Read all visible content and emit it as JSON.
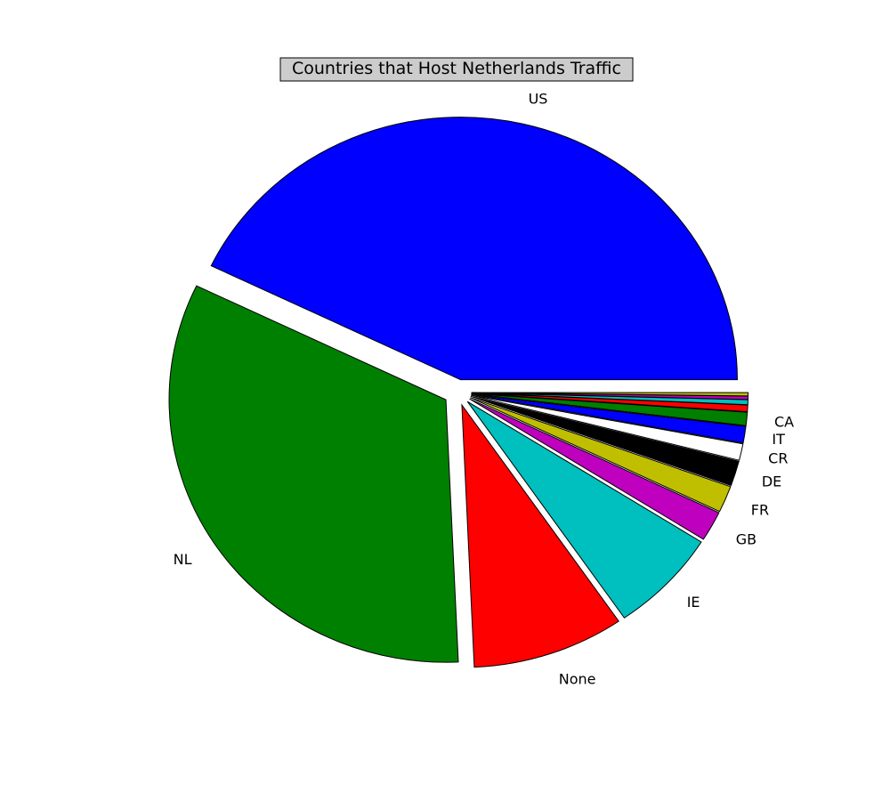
{
  "chart_data": {
    "type": "pie",
    "title": "Countries that Host Netherlands Traffic",
    "slices": [
      {
        "label": "US",
        "value": 42.0,
        "color": "#0000ff",
        "explode": 0.05
      },
      {
        "label": "NL",
        "value": 32.2,
        "color": "#008000",
        "explode": 0.05
      },
      {
        "label": "None",
        "value": 8.7,
        "color": "#ff0000",
        "explode": 0.05
      },
      {
        "label": "IE",
        "value": 6.3,
        "color": "#00bfbf",
        "explode": 0.05
      },
      {
        "label": "GB",
        "value": 1.8,
        "color": "#bf00bf",
        "explode": 0.05
      },
      {
        "label": "FR",
        "value": 1.6,
        "color": "#bfbf00",
        "explode": 0.05
      },
      {
        "label": "DE",
        "value": 1.5,
        "color": "#000000",
        "explode": 0.05
      },
      {
        "label": "CR",
        "value": 1.0,
        "color": "#ffffff",
        "explode": 0.05
      },
      {
        "label": "IT",
        "value": 1.0,
        "color": "#0000ff",
        "explode": 0.05
      },
      {
        "label": "CA",
        "value": 0.8,
        "color": "#008000",
        "explode": 0.05
      },
      {
        "label": "",
        "value": 0.4,
        "color": "#ff0000",
        "explode": 0.05
      },
      {
        "label": "",
        "value": 0.3,
        "color": "#00bfbf",
        "explode": 0.05
      },
      {
        "label": "",
        "value": 0.2,
        "color": "#bf00bf",
        "explode": 0.05
      },
      {
        "label": "",
        "value": 0.2,
        "color": "#bfbf00",
        "explode": 0.05
      }
    ],
    "start_angle_deg": 0,
    "direction": "counterclockwise",
    "legend": "none"
  }
}
